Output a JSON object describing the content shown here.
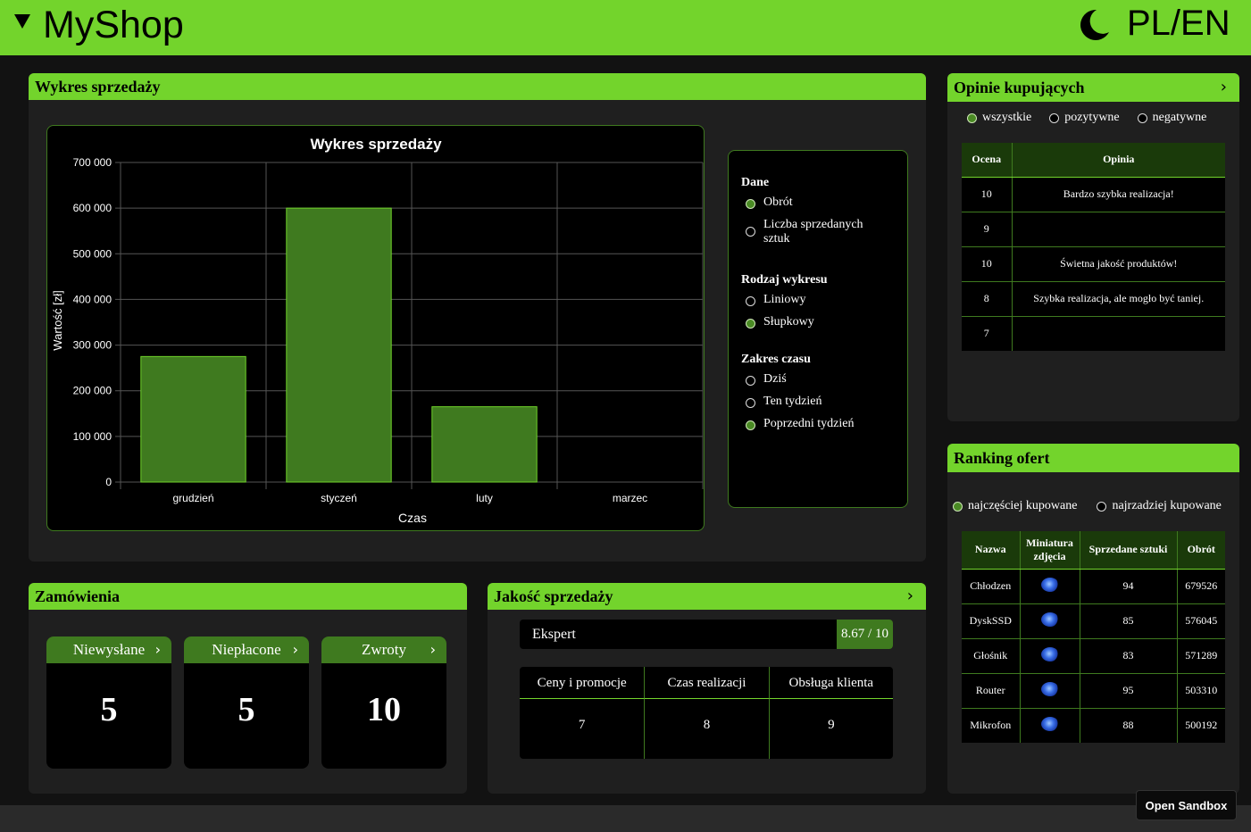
{
  "header": {
    "app_title": "MyShop",
    "lang_label": "PL/EN",
    "menu_icon": "triangle-down-icon",
    "theme_icon": "moon-icon"
  },
  "sales_panel": {
    "title": "Wykres sprzedaży",
    "options": {
      "data_title": "Dane",
      "data_options": [
        "Obrót",
        "Liczba sprzedanych sztuk"
      ],
      "data_selected": 0,
      "type_title": "Rodzaj wykresu",
      "type_options": [
        "Liniowy",
        "Słupkowy"
      ],
      "type_selected": 1,
      "range_title": "Zakres czasu",
      "range_options": [
        "Dziś",
        "Ten tydzień",
        "Poprzedni tydzień"
      ],
      "range_selected": 2
    }
  },
  "chart_data": {
    "type": "bar",
    "title": "Wykres sprzedaży",
    "xlabel": "Czas",
    "ylabel": "Wartość [zł]",
    "categories": [
      "grudzień",
      "styczeń",
      "luty",
      "marzec"
    ],
    "values": [
      275000,
      600000,
      165000,
      0
    ],
    "ylim": [
      0,
      700000
    ],
    "yticks": [
      "0",
      "100 000",
      "200 000",
      "300 000",
      "400 000",
      "500 000",
      "600 000",
      "700 000"
    ],
    "bar_color": "#3f7a1f",
    "bar_border": "#6fd22a",
    "grid": true
  },
  "orders": {
    "title": "Zamówienia",
    "items": [
      {
        "label": "Niewysłane",
        "value": "5"
      },
      {
        "label": "Niepłacone",
        "value": "5"
      },
      {
        "label": "Zwroty",
        "value": "10"
      }
    ]
  },
  "quality": {
    "title": "Jakość sprzedaży",
    "level": "Ekspert",
    "score": "8.67 / 10",
    "headers": [
      "Ceny i promocje",
      "Czas realizacji",
      "Obsługa klienta"
    ],
    "values": [
      "7",
      "8",
      "9"
    ]
  },
  "reviews": {
    "title": "Opinie kupujących",
    "filters": [
      "wszystkie",
      "pozytywne",
      "negatywne"
    ],
    "filter_selected": 0,
    "headers": [
      "Ocena",
      "Opinia"
    ],
    "rows": [
      {
        "rating": "10",
        "text": "Bardzo szybka realizacja!"
      },
      {
        "rating": "9",
        "text": ""
      },
      {
        "rating": "10",
        "text": "Świetna jakość produktów!"
      },
      {
        "rating": "8",
        "text": "Szybka realizacja, ale mogło być taniej."
      },
      {
        "rating": "7",
        "text": ""
      }
    ]
  },
  "ranking": {
    "title": "Ranking ofert",
    "filters": [
      "najczęściej kupowane",
      "najrzadziej kupowane"
    ],
    "filter_selected": 0,
    "headers": [
      "Nazwa",
      "Miniatura zdjęcia",
      "Sprzedane sztuki",
      "Obrót"
    ],
    "rows": [
      {
        "name": "Chłodzen",
        "sold": "94",
        "revenue": "679526"
      },
      {
        "name": "DyskSSD",
        "sold": "85",
        "revenue": "576045"
      },
      {
        "name": "Głośnik",
        "sold": "83",
        "revenue": "571289"
      },
      {
        "name": "Router",
        "sold": "95",
        "revenue": "503310"
      },
      {
        "name": "Mikrofon",
        "sold": "88",
        "revenue": "500192"
      }
    ]
  },
  "sandbox_button": "Open Sandbox",
  "colors": {
    "accent": "#73d42c",
    "accent_dark": "#3f7a1f",
    "background": "#121212",
    "panel": "#1f1f1f"
  }
}
